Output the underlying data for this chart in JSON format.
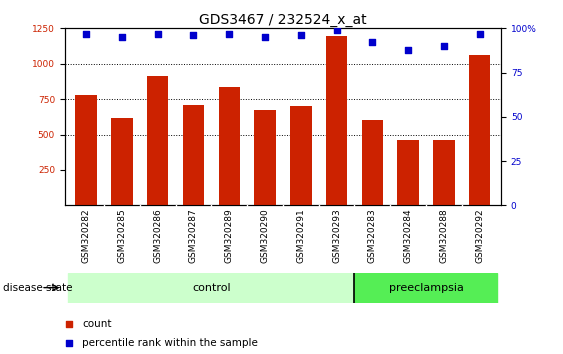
{
  "title": "GDS3467 / 232524_x_at",
  "categories": [
    "GSM320282",
    "GSM320285",
    "GSM320286",
    "GSM320287",
    "GSM320289",
    "GSM320290",
    "GSM320291",
    "GSM320293",
    "GSM320283",
    "GSM320284",
    "GSM320288",
    "GSM320292"
  ],
  "bar_values": [
    780,
    620,
    910,
    710,
    835,
    670,
    700,
    1195,
    600,
    460,
    460,
    1060
  ],
  "percentile_values": [
    97,
    95,
    97,
    96,
    97,
    95,
    96,
    99,
    92,
    88,
    90,
    97
  ],
  "bar_color": "#cc2200",
  "percentile_color": "#0000cc",
  "ylim_left": [
    0,
    1250
  ],
  "ylim_right": [
    0,
    100
  ],
  "yticks_left": [
    250,
    500,
    750,
    1000,
    1250
  ],
  "yticks_right": [
    0,
    25,
    50,
    75,
    100
  ],
  "grid_values": [
    500,
    750,
    1000
  ],
  "n_control": 8,
  "n_preeclampsia": 4,
  "control_label": "control",
  "preeclampsia_label": "preeclampsia",
  "disease_state_label": "disease state",
  "legend_count_label": "count",
  "legend_percentile_label": "percentile rank within the sample",
  "control_color": "#ccffcc",
  "preeclampsia_color": "#55ee55",
  "label_band_color": "#cccccc",
  "bg_color": "#ffffff",
  "bar_width": 0.6,
  "title_fontsize": 10,
  "tick_fontsize": 6.5,
  "legend_fontsize": 7.5
}
